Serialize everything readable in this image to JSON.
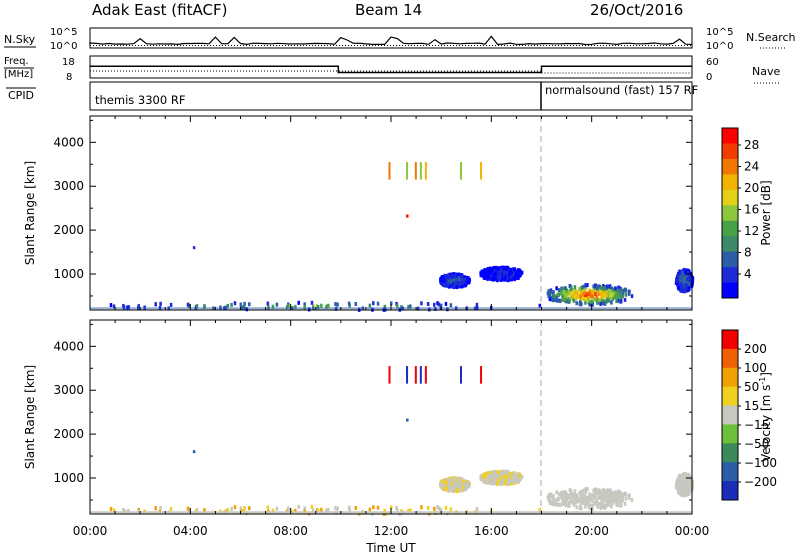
{
  "header": {
    "station": "Adak East (fitACF)",
    "beam": "Beam 14",
    "date": "26/Oct/2016"
  },
  "top_panels": {
    "nsky_label": "N.Sky",
    "nsearch_label": "N.Search",
    "nave_label": "Nave",
    "freq_label": "Freq.",
    "freq_unit": "[MHz]",
    "cpid_label": "CPID",
    "count_ticks": [
      "10^5",
      "10^0"
    ],
    "freq_ticks": [
      "18",
      "8"
    ],
    "nave_ticks": [
      "60",
      "0"
    ],
    "cpid_segments": [
      {
        "name": "themis 3300 RF",
        "start_hour": 0,
        "end_hour": 18
      },
      {
        "name": "normalsound (fast) 157 RF",
        "start_hour": 18,
        "end_hour": 24
      }
    ]
  },
  "axes": {
    "x_label": "Time UT",
    "x_ticks": [
      "00:00",
      "04:00",
      "08:00",
      "12:00",
      "16:00",
      "20:00",
      "00:00"
    ],
    "y_label": "Slant Range [km]",
    "y_ticks": [
      "4000",
      "3000",
      "2000",
      "1000"
    ]
  },
  "power_colorbar": {
    "label": "Power [dB]",
    "ticks": [
      "28",
      "24",
      "20",
      "16",
      "12",
      "8",
      "4"
    ],
    "colors": [
      "#0000ff",
      "#1c2bd6",
      "#2c5ea8",
      "#3c8a6a",
      "#48a048",
      "#8cc63c",
      "#e4d018",
      "#f0b400",
      "#f07800",
      "#f03c00",
      "#ff0000"
    ]
  },
  "velocity_colorbar": {
    "label": "Velocity [m s",
    "label_sup": "-1",
    "label_end": "]",
    "ticks": [
      "200",
      "100",
      "50",
      "15",
      "−15",
      "−50",
      "−100",
      "−200"
    ],
    "colors": [
      "#1a2db8",
      "#2c5ea8",
      "#3c8a5a",
      "#6cc03c",
      "#c8c8c0",
      "#f0d020",
      "#f0a000",
      "#f06000",
      "#f00000"
    ]
  },
  "chart_data": {
    "type": "heatmap",
    "xlim_hours": [
      0,
      24
    ],
    "ylim_km": [
      180,
      4600
    ],
    "cpid_change_hour": 18,
    "freq_mhz": [
      {
        "from_hour": 0,
        "to_hour": 9.9,
        "value": 13.3
      },
      {
        "from_hour": 9.9,
        "to_hour": 18,
        "value": 10.5
      },
      {
        "from_hour": 18,
        "to_hour": 24,
        "value": 13.3
      }
    ],
    "power_blobs": [
      {
        "t0": 18.1,
        "t1": 21.6,
        "r0": 300,
        "r1": 750,
        "peak_db": 28
      },
      {
        "t0": 13.9,
        "t1": 15.1,
        "r0": 700,
        "r1": 1000,
        "peak_db": 8
      },
      {
        "t0": 15.5,
        "t1": 17.2,
        "r0": 850,
        "r1": 1150,
        "peak_db": 4
      },
      {
        "t0": 23.3,
        "t1": 24.0,
        "r0": 600,
        "r1": 1100,
        "peak_db": 10
      },
      {
        "t0": 0.0,
        "t1": 18.0,
        "r0": 180,
        "r1": 350,
        "peak_db": 14
      }
    ],
    "spurious_streaks": [
      {
        "hour": 11.9,
        "r0": 3150,
        "r1": 3550,
        "db": 24
      },
      {
        "hour": 12.6,
        "r0": 3150,
        "r1": 3550,
        "db": 16
      },
      {
        "hour": 12.95,
        "r0": 3150,
        "r1": 3550,
        "db": 24
      },
      {
        "hour": 13.15,
        "r0": 3150,
        "r1": 3550,
        "db": 16
      },
      {
        "hour": 13.35,
        "r0": 3150,
        "r1": 3550,
        "db": 20
      },
      {
        "hour": 14.75,
        "r0": 3150,
        "r1": 3550,
        "db": 16
      },
      {
        "hour": 15.55,
        "r0": 3150,
        "r1": 3550,
        "db": 20
      }
    ],
    "isolated_points": [
      {
        "hour": 4.1,
        "range_km": 1600,
        "db": 4
      },
      {
        "hour": 12.6,
        "range_km": 2320,
        "db": 28
      }
    ]
  }
}
